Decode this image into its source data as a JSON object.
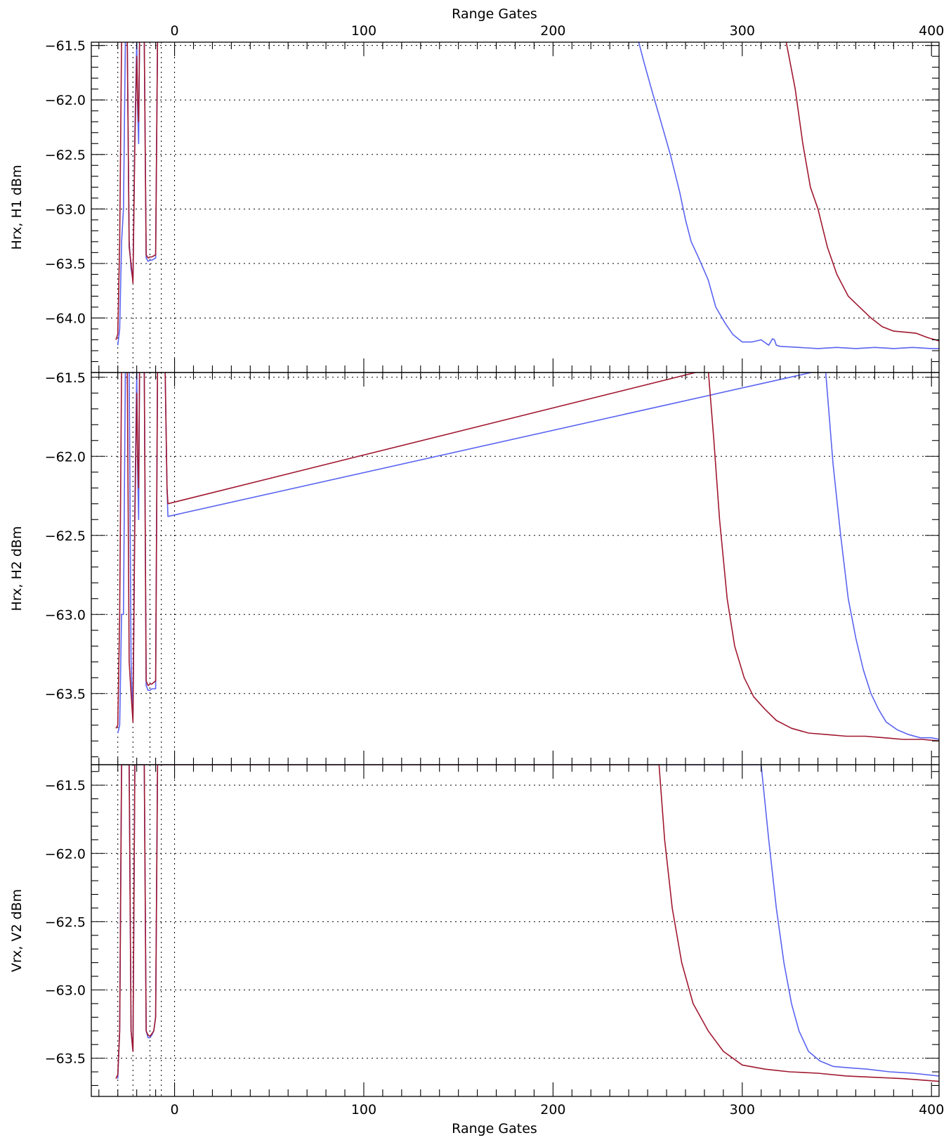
{
  "chart_data": {
    "type": "line",
    "shared_x_axis": {
      "label_top": "Range Gates",
      "label_bottom": "Range Gates",
      "xlim": [
        -44,
        404
      ],
      "ticks": [
        0,
        100,
        200,
        300,
        400
      ],
      "vertical_markers": [
        -30,
        -22,
        -13,
        -7,
        0
      ]
    },
    "colors": {
      "blue": "#5a64f0",
      "red": "#a01830"
    },
    "panels": [
      {
        "ylabel": "Hrx, H1 dBm",
        "ylim": [
          -64.5,
          -61.47
        ],
        "yticks": [
          -61.5,
          -62.0,
          -62.5,
          -63.0,
          -63.5,
          -64.0
        ],
        "ytick_labels": [
          "−61.5",
          "−62.0",
          "−62.5",
          "−63.0",
          "−63.5",
          "−64.0"
        ],
        "grid": "horizontal dotted",
        "series": [
          {
            "color": "blue",
            "x": [
              -30,
              -29,
              -28,
              -27,
              -26,
              -25,
              -24,
              -23,
              -22,
              -21,
              -20,
              -19.5,
              -19,
              -18.5,
              -18,
              -17.5,
              -17,
              -16,
              -15,
              -14,
              -13,
              -12,
              -11,
              -10,
              -9,
              -8,
              -7.5,
              -7,
              245,
              248,
              252,
              257,
              262,
              267,
              270,
              273,
              277,
              282,
              286,
              291,
              295,
              300,
              305,
              310,
              314,
              316,
              317,
              318,
              320,
              330,
              340,
              350,
              360,
              370,
              380,
              390,
              400,
              404
            ],
            "y": [
              -64.25,
              -64.1,
              -63.3,
              -63.0,
              -61.45,
              -61.45,
              -63.3,
              -63.55,
              -63.65,
              -62.3,
              -61.45,
              -62.1,
              -62.4,
              -61.45,
              -61.45,
              -61.45,
              -61.45,
              -61.45,
              -63.45,
              -63.48,
              -63.47,
              -63.47,
              -63.46,
              -63.45,
              -61.45,
              -61.45,
              -61.45,
              -61.45,
              -61.45,
              -61.65,
              -61.9,
              -62.2,
              -62.5,
              -62.85,
              -63.1,
              -63.3,
              -63.45,
              -63.65,
              -63.9,
              -64.05,
              -64.15,
              -64.22,
              -64.22,
              -64.2,
              -64.25,
              -64.19,
              -64.2,
              -64.25,
              -64.26,
              -64.27,
              -64.28,
              -64.27,
              -64.28,
              -64.27,
              -64.28,
              -64.27,
              -64.28,
              -64.28
            ]
          },
          {
            "color": "red",
            "x": [
              -31,
              -30,
              -29,
              -28,
              -27,
              -26,
              -25,
              -24,
              -23,
              -22,
              -21,
              -20,
              -19.5,
              -19,
              -18.5,
              -18,
              -17.5,
              -17,
              -16,
              -15,
              -14,
              -13,
              -12,
              -11,
              -10,
              -9,
              -8,
              -7.5,
              -7,
              323,
              328,
              332,
              336,
              340,
              345,
              350,
              356,
              362,
              368,
              374,
              380,
              386,
              392,
              398,
              404
            ],
            "y": [
              -64.2,
              -64.15,
              -63.3,
              -61.45,
              -61.45,
              -61.45,
              -61.45,
              -63.35,
              -63.5,
              -63.68,
              -62.4,
              -61.6,
              -62.0,
              -62.2,
              -61.45,
              -61.45,
              -61.45,
              -61.45,
              -61.45,
              -63.42,
              -63.45,
              -63.44,
              -63.44,
              -63.43,
              -63.42,
              -61.45,
              -61.45,
              -61.45,
              -61.45,
              -61.45,
              -61.9,
              -62.4,
              -62.8,
              -63.0,
              -63.35,
              -63.6,
              -63.8,
              -63.9,
              -64.0,
              -64.08,
              -64.12,
              -64.13,
              -64.14,
              -64.18,
              -64.21
            ]
          }
        ]
      },
      {
        "ylabel": "Hrx, H2 dBm",
        "ylim": [
          -63.95,
          -61.47
        ],
        "yticks": [
          -61.5,
          -62.0,
          -62.5,
          -63.0,
          -63.5
        ],
        "ytick_labels": [
          "−61.5",
          "−62.0",
          "−62.5",
          "−63.0",
          "−63.5"
        ],
        "grid": "horizontal dotted",
        "series": [
          {
            "color": "blue",
            "x": [
              -30,
              -29,
              -28,
              -27,
              -26,
              -25,
              -24,
              -23,
              -22,
              -21,
              -20,
              -19.5,
              -19,
              -18.5,
              -18,
              -17.5,
              -17,
              -16,
              -15,
              -14,
              -13,
              -12,
              -11,
              -10,
              -9,
              -8,
              -7.5,
              -7,
              -5,
              -4,
              -3.5,
              344,
              348,
              352,
              356,
              360,
              364,
              368,
              372,
              376,
              382,
              388,
              394,
              400,
              404
            ],
            "y": [
              -63.75,
              -63.7,
              -63.0,
              -63.0,
              -61.45,
              -61.45,
              -61.45,
              -63.3,
              -63.65,
              -62.3,
              -61.45,
              -62.1,
              -62.4,
              -61.45,
              -61.45,
              -61.45,
              -61.45,
              -61.45,
              -63.45,
              -63.48,
              -63.48,
              -63.47,
              -63.47,
              -63.47,
              -61.45,
              -61.45,
              -61.45,
              -61.45,
              -61.45,
              -62.2,
              -62.38,
              -61.45,
              -62.05,
              -62.5,
              -62.9,
              -63.15,
              -63.35,
              -63.5,
              -63.6,
              -63.68,
              -63.73,
              -63.76,
              -63.78,
              -63.78,
              -63.79
            ]
          },
          {
            "color": "red",
            "x": [
              -31,
              -30,
              -29,
              -28,
              -27,
              -26,
              -25,
              -24,
              -23,
              -22,
              -21,
              -20,
              -19.5,
              -19,
              -18.5,
              -18,
              -17.5,
              -17,
              -16,
              -15,
              -14,
              -13,
              -12,
              -11,
              -10,
              -9,
              -8,
              -7.5,
              -7,
              -5,
              -4,
              -3.5,
              282,
              285,
              288,
              292,
              296,
              301,
              306,
              312,
              318,
              326,
              335,
              345,
              355,
              365,
              375,
              385,
              395,
              404
            ],
            "y": [
              -63.72,
              -63.7,
              -63.0,
              -61.45,
              -61.45,
              -61.45,
              -61.45,
              -63.3,
              -63.5,
              -63.68,
              -62.4,
              -61.6,
              -62.0,
              -62.2,
              -61.45,
              -61.45,
              -61.45,
              -61.45,
              -61.45,
              -63.42,
              -63.45,
              -63.44,
              -63.44,
              -63.43,
              -63.42,
              -61.45,
              -61.45,
              -61.45,
              -61.45,
              -61.45,
              -62.2,
              -62.3,
              -61.45,
              -61.9,
              -62.4,
              -62.9,
              -63.2,
              -63.4,
              -63.52,
              -63.6,
              -63.67,
              -63.72,
              -63.75,
              -63.76,
              -63.77,
              -63.77,
              -63.78,
              -63.79,
              -63.79,
              -63.8
            ]
          }
        ]
      },
      {
        "ylabel": "Vrx, V2 dBm",
        "ylim": [
          -63.78,
          -61.35
        ],
        "yticks": [
          -61.5,
          -62.0,
          -62.5,
          -63.0,
          -63.5
        ],
        "ytick_labels": [
          "−61.5",
          "−62.0",
          "−62.5",
          "−63.0",
          "−63.5"
        ],
        "grid": "horizontal dotted",
        "series": [
          {
            "color": "blue",
            "x": [
              -30,
              -29,
              -28,
              -27,
              -26,
              -25,
              -24,
              -23,
              -22,
              -21,
              -20,
              -19.5,
              -19,
              -18.5,
              -18,
              -17.5,
              -17,
              -16,
              -15,
              -14,
              -13,
              -12,
              -11,
              -10,
              -9,
              310,
              314,
              318,
              322,
              326,
              330,
              335,
              341,
              348,
              356,
              366,
              378,
              390,
              404
            ],
            "y": [
              -63.65,
              -63.3,
              -61.35,
              -61.35,
              -61.35,
              -61.35,
              -61.35,
              -63.3,
              -63.45,
              -61.35,
              -61.35,
              -61.35,
              -61.35,
              -61.35,
              -61.35,
              -61.35,
              -61.35,
              -61.35,
              -63.3,
              -63.35,
              -63.35,
              -63.33,
              -63.3,
              -63.2,
              -61.35,
              -61.35,
              -61.9,
              -62.4,
              -62.8,
              -63.1,
              -63.3,
              -63.45,
              -63.52,
              -63.56,
              -63.57,
              -63.58,
              -63.6,
              -63.61,
              -63.63
            ]
          },
          {
            "color": "red",
            "x": [
              -31,
              -30,
              -29,
              -28,
              -27,
              -26,
              -25,
              -24,
              -23,
              -22,
              -21,
              -20,
              -19.5,
              -19,
              -18.5,
              -18,
              -17.5,
              -17,
              -16,
              -15,
              -14,
              -13,
              -12,
              -11,
              -10,
              -9,
              256,
              259,
              263,
              268,
              274,
              282,
              290,
              300,
              312,
              325,
              340,
              355,
              370,
              385,
              404
            ],
            "y": [
              -63.65,
              -63.62,
              -63.3,
              -61.35,
              -61.35,
              -61.35,
              -61.35,
              -61.35,
              -63.3,
              -63.45,
              -61.35,
              -61.35,
              -61.35,
              -61.35,
              -61.35,
              -61.35,
              -61.35,
              -61.35,
              -61.35,
              -63.3,
              -63.33,
              -63.34,
              -63.32,
              -63.3,
              -63.2,
              -61.35,
              -61.35,
              -61.9,
              -62.4,
              -62.8,
              -63.1,
              -63.3,
              -63.45,
              -63.55,
              -63.58,
              -63.6,
              -63.61,
              -63.63,
              -63.64,
              -63.65,
              -63.67
            ]
          }
        ]
      }
    ]
  }
}
